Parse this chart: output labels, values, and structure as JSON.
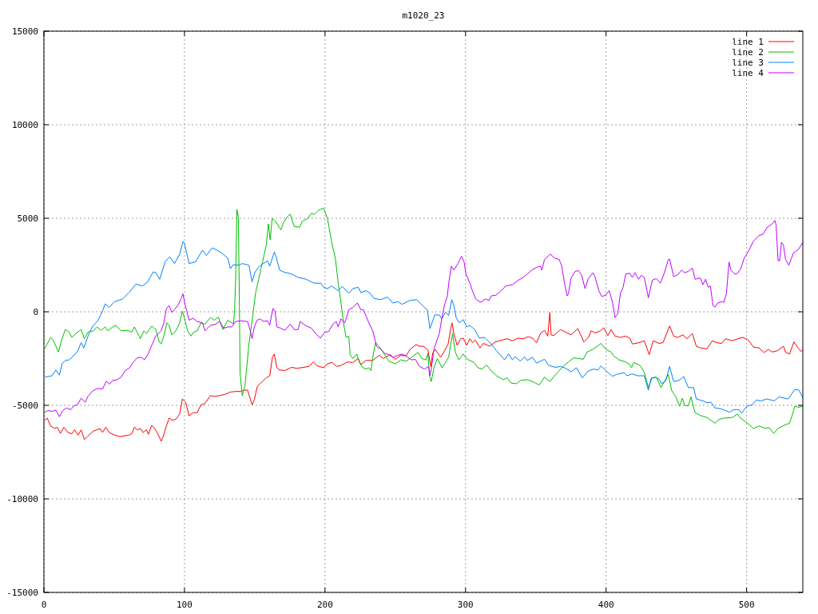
{
  "chart_data": {
    "type": "line",
    "title": "m1020_23",
    "xlim": [
      0,
      540
    ],
    "ylim": [
      -15000,
      15000
    ],
    "xticks": [
      0,
      100,
      200,
      300,
      400,
      500
    ],
    "yticks": [
      -15000,
      -10000,
      -5000,
      0,
      5000,
      10000,
      15000
    ],
    "grid": true,
    "legend": "top right",
    "series": [
      {
        "name": "line 1",
        "color": "#ff0000",
        "x": [
          1,
          2.3,
          4.7,
          7.6,
          9.5,
          11.7,
          14.2,
          17.1,
          19.9,
          21.8,
          24.3,
          26.5,
          28.8,
          31.3,
          35.1,
          39.8,
          41.7,
          44,
          46.4,
          50.2,
          54,
          60.6,
          62.5,
          64.4,
          66.3,
          68.6,
          70.5,
          73,
          74.3,
          76.7,
          78.6,
          81.5,
          83.4,
          84.9,
          86.8,
          89.1,
          91,
          93.8,
          96.6,
          98.5,
          100.8,
          103.3,
          106.1,
          109,
          111.8,
          114.6,
          116.5,
          118.4,
          121.3,
          125.1,
          128.9,
          132.7,
          136.4,
          140.2,
          142.1,
          144.9,
          148.1,
          149.7,
          151.9,
          155.3,
          158.2,
          160.7,
          162.6,
          163.9,
          165.8,
          167.7,
          171.5,
          176.2,
          180,
          184.7,
          188.5,
          191.7,
          194.2,
          198.9,
          201.8,
          205,
          208.4,
          211.8,
          216,
          219.8,
          223.6,
          225.5,
          229.2,
          234,
          238.7,
          241.6,
          246.3,
          250.1,
          253.9,
          257.7,
          260.5,
          264.9,
          267.2,
          270,
          273.2,
          275.3,
          276.6,
          278.5,
          282.3,
          285.1,
          287.6,
          289.5,
          290.4,
          291.7,
          294,
          296.5,
          298.4,
          300.8,
          303.1,
          305,
          306.9,
          310.3,
          312.6,
          317.3,
          321.1,
          325.9,
          329.6,
          333.4,
          337.2,
          341,
          344.8,
          347.7,
          350.5,
          353.3,
          356.2,
          358.5,
          360,
          360.9,
          362.8,
          367.6,
          371.3,
          375.1,
          379.9,
          384.2,
          387.4,
          389.3,
          392.2,
          396,
          398.3,
          401.3,
          403.6,
          406.4,
          410.2,
          414,
          416.8,
          418.7,
          423.5,
          427.2,
          430.7,
          433.5,
          437.7,
          440.5,
          445.2,
          448.1,
          450.9,
          454.7,
          457.6,
          461.4,
          464.2,
          467,
          471.8,
          475.6,
          478.8,
          482.2,
          485,
          489.8,
          493.6,
          497.4,
          501.2,
          504.9,
          508.7,
          512.5,
          515.4,
          518.2,
          522,
          526.2,
          527.7,
          530.5,
          533.7,
          536.2,
          538.7,
          540
        ],
        "values": [
          -5790,
          -5680,
          -6100,
          -6240,
          -6170,
          -6500,
          -6170,
          -6450,
          -6520,
          -6310,
          -6590,
          -6310,
          -6830,
          -6640,
          -6380,
          -6240,
          -6450,
          -6170,
          -6450,
          -6590,
          -6670,
          -6590,
          -6520,
          -6170,
          -6310,
          -6240,
          -6450,
          -6310,
          -6550,
          -6070,
          -6210,
          -6590,
          -6920,
          -6670,
          -6170,
          -5680,
          -5790,
          -5750,
          -5460,
          -4660,
          -4830,
          -5560,
          -5390,
          -5390,
          -4970,
          -4900,
          -4690,
          -4480,
          -4520,
          -4480,
          -4410,
          -4290,
          -4260,
          -4260,
          -4190,
          -4190,
          -4970,
          -4690,
          -3980,
          -3730,
          -3530,
          -3420,
          -2430,
          -2260,
          -2990,
          -3110,
          -3140,
          -2970,
          -3020,
          -2970,
          -2920,
          -2680,
          -2880,
          -2990,
          -2780,
          -2710,
          -2920,
          -2850,
          -2680,
          -2710,
          -2500,
          -2820,
          -2600,
          -2600,
          -2320,
          -2500,
          -2290,
          -2540,
          -2320,
          -2360,
          -2010,
          -1750,
          -1840,
          -1840,
          -2030,
          -2920,
          -2210,
          -2010,
          -2430,
          -2080,
          -1720,
          -880,
          -590,
          -1160,
          -1790,
          -1440,
          -1410,
          -1790,
          -1440,
          -1650,
          -1510,
          -1930,
          -1690,
          -1840,
          -1610,
          -1510,
          -1440,
          -1550,
          -1410,
          -1440,
          -1330,
          -1410,
          -1650,
          -1160,
          -990,
          -1300,
          -30,
          -1230,
          -1270,
          -950,
          -1090,
          -1230,
          -900,
          -1610,
          -1370,
          -1020,
          -1130,
          -1020,
          -850,
          -1270,
          -950,
          -1300,
          -1370,
          -1300,
          -1410,
          -1720,
          -1650,
          -1550,
          -2290,
          -1550,
          -1690,
          -1650,
          -760,
          -1300,
          -1370,
          -1230,
          -1440,
          -1160,
          -1840,
          -1930,
          -1980,
          -1550,
          -1650,
          -1690,
          -1440,
          -1550,
          -1440,
          -1370,
          -1510,
          -1890,
          -1930,
          -2180,
          -2010,
          -2150,
          -2080,
          -1840,
          -2150,
          -2260,
          -1610,
          -1890,
          -2120,
          -2030
        ]
      },
      {
        "name": "line 2",
        "color": "#00c000",
        "x": [
          0.9,
          2.3,
          4.7,
          6.6,
          8.5,
          10.4,
          12.3,
          15.2,
          18,
          19.9,
          22.7,
          26.5,
          28.8,
          31.3,
          35.1,
          37.9,
          40.7,
          43.6,
          45.5,
          48.9,
          51.2,
          55,
          59.7,
          62.5,
          64.4,
          66.3,
          68.6,
          71.1,
          73,
          74.9,
          76.7,
          79.6,
          81.9,
          83.4,
          85.3,
          87.5,
          89.1,
          91,
          93.8,
          96.3,
          98.5,
          100.4,
          102.3,
          104.6,
          106.5,
          109,
          111.8,
          114.6,
          118.4,
          121.3,
          124.1,
          127.3,
          130.8,
          133.6,
          134.9,
          135.7,
          136.4,
          137.3,
          138.3,
          138.9,
          139.6,
          141.1,
          143,
          145.9,
          148.7,
          150.6,
          154.4,
          158.2,
          159.7,
          161,
          162.4,
          164.8,
          168.6,
          170.5,
          172.8,
          175.2,
          178.1,
          181.9,
          183.8,
          187.6,
          190.4,
          192.3,
          195.1,
          198.9,
          201.8,
          204.6,
          207.5,
          209.4,
          211.3,
          213.1,
          215,
          216.9,
          217.9,
          219.8,
          222.6,
          224.5,
          227,
          229.2,
          231.2,
          232.7,
          234,
          235.9,
          238.7,
          242.5,
          245.4,
          250.1,
          253.9,
          257.7,
          260.5,
          263.4,
          266.2,
          269,
          271.8,
          273.2,
          274.3,
          275.6,
          277.5,
          280,
          283.2,
          285.7,
          288,
          289.5,
          290.8,
          292.7,
          295.2,
          298.4,
          301.2,
          306,
          308.8,
          311.6,
          314.9,
          318.3,
          322.1,
          326.8,
          329.6,
          332.5,
          336.3,
          339.1,
          343.9,
          347.7,
          352.4,
          356.2,
          360,
          364.7,
          369.4,
          373.2,
          377,
          380.8,
          383.7,
          386.5,
          391.2,
          396.4,
          399.8,
          403.5,
          405.5,
          409.2,
          414,
          416.8,
          418.1,
          419.7,
          424.4,
          427.2,
          430.1,
          432.6,
          435.8,
          439,
          441.5,
          444.3,
          446.6,
          449.6,
          452.3,
          454.2,
          456,
          458.5,
          460.4,
          463.3,
          467,
          471.8,
          477.5,
          480.3,
          484.1,
          489.8,
          493.6,
          495.5,
          500.2,
          504.9,
          508.7,
          512.5,
          516.3,
          519.2,
          522.9,
          527.7,
          530.5,
          532.4,
          534.3,
          537.2,
          540
        ],
        "values": [
          -1930,
          -1720,
          -1370,
          -1510,
          -1840,
          -2150,
          -1580,
          -950,
          -1090,
          -1370,
          -1160,
          -950,
          -1440,
          -1090,
          -1020,
          -810,
          -990,
          -810,
          -1020,
          -810,
          -730,
          -1020,
          -990,
          -1090,
          -810,
          -1090,
          -1440,
          -1020,
          -1160,
          -950,
          -760,
          -950,
          -1580,
          -1720,
          -1300,
          -590,
          -730,
          -1230,
          -1020,
          -660,
          40,
          -450,
          -1020,
          -1300,
          -1090,
          -1020,
          -590,
          -660,
          -310,
          -450,
          -280,
          -950,
          -450,
          -590,
          -640,
          140,
          1710,
          5480,
          5060,
          1710,
          -3290,
          -4490,
          -3990,
          -1710,
          -140,
          1000,
          2280,
          3560,
          4700,
          3850,
          4990,
          4840,
          4380,
          4770,
          5060,
          5220,
          4560,
          4520,
          4840,
          4980,
          5270,
          5200,
          5410,
          5550,
          4980,
          3780,
          2800,
          1530,
          540,
          -590,
          -1370,
          -1300,
          -2290,
          -2500,
          -2260,
          -2710,
          -2990,
          -3060,
          -2990,
          -3140,
          -2430,
          -1650,
          -1860,
          -2290,
          -2640,
          -2780,
          -2570,
          -2640,
          -2500,
          -2320,
          -2180,
          -2500,
          -2570,
          -2220,
          -3420,
          -3730,
          -2990,
          -2500,
          -2990,
          -2710,
          -2430,
          -1720,
          -1160,
          -2150,
          -2570,
          -2260,
          -2540,
          -2710,
          -2990,
          -3060,
          -2850,
          -3160,
          -3420,
          -3630,
          -3530,
          -3810,
          -3840,
          -3670,
          -3630,
          -3730,
          -3910,
          -3490,
          -3730,
          -3300,
          -2920,
          -2680,
          -2460,
          -2500,
          -2540,
          -2150,
          -1980,
          -1690,
          -2010,
          -2150,
          -2360,
          -2570,
          -2680,
          -2820,
          -2990,
          -2710,
          -2880,
          -3250,
          -4050,
          -3560,
          -3490,
          -4050,
          -3730,
          -3350,
          -4190,
          -4550,
          -5040,
          -4620,
          -5000,
          -5040,
          -4550,
          -5390,
          -5540,
          -5650,
          -5960,
          -5750,
          -5680,
          -5650,
          -5460,
          -5680,
          -5930,
          -6240,
          -6100,
          -6210,
          -6210,
          -6500,
          -6210,
          -6030,
          -5960,
          -5540,
          -5040,
          -5110,
          -5040
        ]
      },
      {
        "name": "line 3",
        "color": "#0080ff",
        "x": [
          1,
          5.7,
          8.5,
          11,
          12.9,
          15.2,
          18,
          23.7,
          26.5,
          28.4,
          32.2,
          35,
          37.9,
          40.7,
          43.6,
          46.4,
          50.2,
          55.9,
          60.6,
          65.4,
          70.1,
          73.9,
          77.7,
          79.6,
          82.4,
          86.2,
          89.4,
          92.9,
          96.6,
          98.9,
          100,
          103.3,
          108,
          112.8,
          115.6,
          119.8,
          123.2,
          127,
          130.8,
          132.7,
          134.5,
          138.9,
          141.1,
          145.9,
          148.1,
          150,
          152.5,
          155.3,
          159.1,
          160.7,
          163.9,
          165.2,
          167.7,
          170.5,
          176.2,
          180.9,
          186.6,
          192.3,
          197,
          198.9,
          201.8,
          204.6,
          209.4,
          212.2,
          216.9,
          219.8,
          223.6,
          225.5,
          229.2,
          232.1,
          234.9,
          239.7,
          244.4,
          248.2,
          252,
          254.8,
          260.5,
          265.3,
          270,
          272.8,
          274.7,
          278.1,
          281.3,
          283.2,
          285.7,
          288,
          290.2,
          291.7,
          293.3,
          295.5,
          298.4,
          300.8,
          303.1,
          306.5,
          309.8,
          313.5,
          315.4,
          318.3,
          322,
          327.8,
          330.6,
          333.4,
          335.3,
          339.1,
          342,
          343.9,
          347.7,
          350.5,
          356.2,
          359,
          363.8,
          367.6,
          371.3,
          375.1,
          378.9,
          383.1,
          387.4,
          391.2,
          394.1,
          396.4,
          399.8,
          404.5,
          407.3,
          413,
          414.9,
          418.7,
          422.5,
          427.2,
          430.1,
          432,
          434.8,
          437.7,
          439.6,
          442.4,
          445.2,
          448.1,
          451.9,
          455.3,
          458.5,
          462.3,
          464.2,
          468.9,
          471.8,
          474.6,
          477.5,
          481.3,
          484.1,
          487.9,
          490.7,
          494.5,
          496.4,
          500.2,
          504,
          506.8,
          510.2,
          514.4,
          519.7,
          523,
          529.6,
          534.3,
          537.2,
          540
        ],
        "values": [
          -3490,
          -3420,
          -3110,
          -3390,
          -2780,
          -2600,
          -2570,
          -2150,
          -1650,
          -1930,
          -1130,
          -730,
          -520,
          -140,
          420,
          230,
          540,
          680,
          1030,
          1480,
          1380,
          1600,
          2130,
          2090,
          1740,
          2660,
          2940,
          2580,
          3080,
          3760,
          3640,
          2580,
          2680,
          3290,
          3010,
          3420,
          3290,
          3110,
          2870,
          2300,
          2510,
          2490,
          2580,
          2490,
          1600,
          2090,
          2370,
          2540,
          2730,
          2440,
          3190,
          2940,
          2230,
          2130,
          2020,
          1840,
          1740,
          1530,
          1530,
          1310,
          1240,
          1380,
          1130,
          1360,
          990,
          1240,
          1310,
          1030,
          1130,
          990,
          710,
          650,
          790,
          470,
          540,
          400,
          610,
          650,
          280,
          110,
          -900,
          -170,
          -170,
          -380,
          -30,
          -200,
          650,
          330,
          -310,
          -590,
          -420,
          -810,
          -730,
          -950,
          -1410,
          -1370,
          -1510,
          -1720,
          -2080,
          -2570,
          -2250,
          -2570,
          -2400,
          -2640,
          -2400,
          -2600,
          -2430,
          -2740,
          -2540,
          -2850,
          -2970,
          -2920,
          -3020,
          -3210,
          -2990,
          -3530,
          -3160,
          -3060,
          -3110,
          -2900,
          -3140,
          -3450,
          -3350,
          -3250,
          -3420,
          -3320,
          -3420,
          -3420,
          -4190,
          -3560,
          -3490,
          -3600,
          -3840,
          -3700,
          -2920,
          -3730,
          -3670,
          -3460,
          -4050,
          -4050,
          -4660,
          -4760,
          -4860,
          -4830,
          -5140,
          -5180,
          -5250,
          -5370,
          -5230,
          -5230,
          -5420,
          -5040,
          -4970,
          -4720,
          -4760,
          -4660,
          -4760,
          -4550,
          -4660,
          -4150,
          -4190,
          -4580
        ]
      },
      {
        "name": "line 4",
        "color": "#c000ff",
        "x": [
          0.9,
          2.8,
          5.7,
          8.5,
          11,
          13.3,
          16.1,
          19,
          21.2,
          23.7,
          26.5,
          29.4,
          31.3,
          34.5,
          37.9,
          41.7,
          44.5,
          46.4,
          48.9,
          52.1,
          55,
          57.8,
          61,
          63.5,
          66.3,
          69.2,
          71.6,
          73.9,
          76.7,
          79.6,
          81.9,
          83.4,
          85.3,
          87.2,
          89.1,
          91,
          92.9,
          95.7,
          97.6,
          98.9,
          100.4,
          103.3,
          106.1,
          109,
          112.8,
          114.6,
          118.4,
          122.2,
          125.1,
          127.9,
          130.8,
          133.6,
          136.4,
          140.2,
          144.9,
          146.8,
          148.1,
          149.7,
          151.6,
          153.8,
          156.3,
          158.8,
          160.7,
          162.9,
          164.4,
          165.8,
          168.6,
          171.5,
          175.2,
          178.1,
          180.9,
          182.3,
          186,
          190.4,
          193.3,
          196.7,
          199.9,
          202.7,
          205.6,
          208,
          209.4,
          211.3,
          214.1,
          216.9,
          219.8,
          223,
          225.5,
          227.3,
          231.2,
          234,
          236.8,
          239.7,
          242.5,
          245.4,
          248.2,
          252,
          254.8,
          257.7,
          261.5,
          264.3,
          267.2,
          270.9,
          273.8,
          274.7,
          275.6,
          277.5,
          279.4,
          281.3,
          283.2,
          285.1,
          287,
          288.3,
          289.9,
          291.7,
          294.6,
          297.1,
          299,
          300.3,
          303.1,
          305,
          307.3,
          310.7,
          314.1,
          316.8,
          318.3,
          321.7,
          324.9,
          328.7,
          333.4,
          337.2,
          341,
          343.9,
          347.7,
          350.5,
          353.3,
          354.3,
          356.2,
          360.3,
          363.4,
          366.6,
          368.5,
          370.4,
          372.3,
          373.2,
          375.1,
          378,
          380.4,
          382.7,
          385,
          387.4,
          390.7,
          392.2,
          395,
          396.9,
          399.8,
          402.2,
          404.5,
          406.4,
          408.3,
          410.2,
          412.1,
          414,
          416.8,
          418.7,
          420.6,
          423.1,
          425,
          427.2,
          430.1,
          432.9,
          435.8,
          438.6,
          441.5,
          444.3,
          445.2,
          448.1,
          450.9,
          453.8,
          455.7,
          458.5,
          461.4,
          463.3,
          467,
          468.9,
          470.8,
          472.7,
          474.2,
          476.1,
          477.5,
          479.4,
          482.2,
          483.7,
          485.6,
          487.5,
          488.8,
          491.7,
          493.6,
          495.8,
          498.3,
          501.2,
          504.9,
          508.7,
          511.6,
          514.4,
          518.2,
          520.1,
          521,
          522.4,
          523.5,
          524.8,
          526.2,
          527.7,
          530,
          533.4,
          537.2,
          540
        ],
        "values": [
          -5370,
          -5280,
          -5320,
          -5250,
          -5610,
          -5280,
          -5140,
          -5230,
          -5040,
          -4970,
          -4620,
          -4830,
          -4520,
          -4240,
          -4100,
          -4120,
          -3700,
          -3870,
          -3670,
          -3630,
          -3490,
          -3140,
          -2990,
          -2710,
          -2460,
          -2430,
          -2570,
          -2290,
          -1790,
          -1300,
          -1130,
          -1020,
          -590,
          180,
          330,
          -30,
          110,
          400,
          710,
          960,
          400,
          -450,
          -340,
          -520,
          -590,
          -1020,
          -730,
          -660,
          -520,
          -880,
          -810,
          -810,
          -520,
          -480,
          -520,
          -990,
          -1440,
          -810,
          -450,
          -380,
          -520,
          -480,
          -710,
          180,
          40,
          -810,
          -880,
          -990,
          -660,
          -950,
          -950,
          -520,
          -730,
          -880,
          -1160,
          -1410,
          -1090,
          -1050,
          -660,
          -520,
          -810,
          -380,
          -590,
          110,
          230,
          470,
          110,
          110,
          -590,
          -1020,
          -1860,
          -2010,
          -2220,
          -2290,
          -2430,
          -2320,
          -2260,
          -2360,
          -2570,
          -2540,
          -2920,
          -3060,
          -2920,
          -3420,
          -3060,
          -2010,
          -1580,
          -1160,
          -310,
          400,
          820,
          1670,
          2440,
          2230,
          2580,
          2970,
          2660,
          2020,
          1530,
          1100,
          680,
          510,
          680,
          610,
          850,
          890,
          1100,
          1380,
          1450,
          1670,
          1840,
          2020,
          2260,
          2370,
          2440,
          2230,
          2800,
          3080,
          2870,
          2800,
          2440,
          1530,
          850,
          960,
          1810,
          2160,
          2200,
          1950,
          1240,
          1780,
          2090,
          1840,
          1100,
          820,
          890,
          1130,
          540,
          -310,
          -100,
          990,
          1310,
          2020,
          2060,
          1840,
          2090,
          1740,
          1950,
          1840,
          750,
          1690,
          1780,
          1530,
          2090,
          2800,
          2820,
          1880,
          1980,
          2230,
          2090,
          2160,
          2340,
          1740,
          1810,
          1450,
          1740,
          1310,
          1380,
          330,
          250,
          470,
          540,
          510,
          960,
          2660,
          2230,
          2020,
          2060,
          2300,
          2870,
          3220,
          3780,
          4070,
          4140,
          4490,
          4700,
          4890,
          4630,
          2730,
          2730,
          3710,
          3570,
          2800,
          2490,
          3150,
          3360,
          3710
        ]
      }
    ]
  }
}
